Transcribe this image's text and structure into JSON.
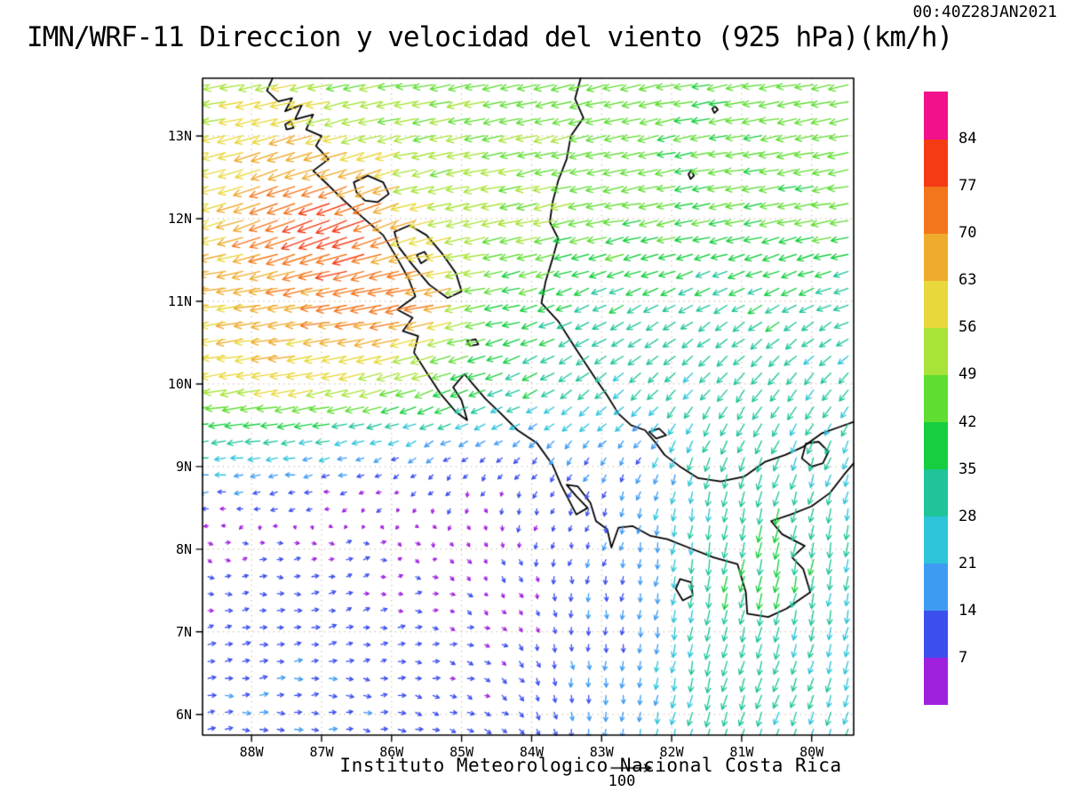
{
  "header": {
    "title": "IMN/WRF-11 Direccion y velocidad del viento (925 hPa)(km/h)",
    "timestamp": "00:40Z28JAN2021"
  },
  "footer": {
    "credit": "Instituto Meteorologico Nacional Costa Rica",
    "reference_value": "100"
  },
  "chart_data": {
    "type": "vector_field",
    "title": "IMN/WRF-11 Direccion y velocidad del viento (925 hPa)(km/h)",
    "timestamp": "00:40Z28JAN2021",
    "credit": "Instituto Meteorologico Nacional Costa Rica",
    "variable": "Direccion y velocidad del viento",
    "level": "925 hPa",
    "units": "km/h",
    "reference_vector_kmh": 100,
    "lon_range": [
      -88.7,
      -79.4
    ],
    "lat_range": [
      5.75,
      13.7
    ],
    "x_ticks": [
      {
        "label": "88W",
        "lon": -88
      },
      {
        "label": "87W",
        "lon": -87
      },
      {
        "label": "86W",
        "lon": -86
      },
      {
        "label": "85W",
        "lon": -85
      },
      {
        "label": "84W",
        "lon": -84
      },
      {
        "label": "83W",
        "lon": -83
      },
      {
        "label": "82W",
        "lon": -82
      },
      {
        "label": "81W",
        "lon": -81
      },
      {
        "label": "80W",
        "lon": -80
      }
    ],
    "y_ticks": [
      {
        "label": "6N",
        "lat": 6
      },
      {
        "label": "7N",
        "lat": 7
      },
      {
        "label": "8N",
        "lat": 8
      },
      {
        "label": "9N",
        "lat": 9
      },
      {
        "label": "10N",
        "lat": 10
      },
      {
        "label": "11N",
        "lat": 11
      },
      {
        "label": "12N",
        "lat": 12
      },
      {
        "label": "13N",
        "lat": 13
      }
    ],
    "colorbar": {
      "thresholds": [
        7,
        14,
        21,
        28,
        35,
        42,
        49,
        56,
        63,
        70,
        77,
        84
      ],
      "colors": [
        "#a021dd",
        "#3c4fee",
        "#3f9bf2",
        "#2ec4d9",
        "#1fc49b",
        "#16ce3f",
        "#5fdd33",
        "#a8e33a",
        "#e8d83c",
        "#eeab2e",
        "#f4761c",
        "#f43b13",
        "#f2108c"
      ]
    },
    "wind_grid": {
      "comment_units": "u eastward km/h, v northward km/h, coarse grid read from figure",
      "lons": [
        -88.7,
        -87.5,
        -86.5,
        -85.5,
        -84.5,
        -83.5,
        -82.5,
        -81.5,
        -80.5,
        -79.4
      ],
      "lats": [
        13.7,
        13.0,
        12.0,
        11.0,
        10.0,
        9.0,
        8.5,
        8.0,
        7.0,
        6.0
      ],
      "u": [
        [
          -50,
          -52,
          -48,
          -46,
          -45,
          -45,
          -44,
          -43,
          -44,
          -45
        ],
        [
          -55,
          -62,
          -56,
          -48,
          -46,
          -45,
          -44,
          -42,
          -44,
          -45
        ],
        [
          -56,
          -70,
          -78,
          -55,
          -50,
          -46,
          -44,
          -42,
          -43,
          -44
        ],
        [
          -62,
          -68,
          -73,
          -74,
          -42,
          -33,
          -30,
          -28,
          -30,
          -30
        ],
        [
          -55,
          -58,
          -55,
          -45,
          -35,
          -25,
          -22,
          -20,
          -20,
          -18
        ],
        [
          -22,
          -18,
          -12,
          -8,
          -6,
          -8,
          -6,
          -8,
          -10,
          -8
        ],
        [
          -10,
          -8,
          -4,
          -2,
          0,
          -2,
          -4,
          -5,
          -8,
          -5
        ],
        [
          6,
          8,
          6,
          4,
          2,
          -2,
          -3,
          -5,
          -8,
          -5
        ],
        [
          10,
          12,
          10,
          8,
          6,
          2,
          -2,
          -6,
          -8,
          -6
        ],
        [
          12,
          13,
          12,
          10,
          8,
          2,
          -3,
          -8,
          -10,
          -8
        ]
      ],
      "v": [
        [
          -8,
          -10,
          -10,
          -8,
          -10,
          -12,
          -10,
          -8,
          -8,
          -8
        ],
        [
          -10,
          -18,
          -15,
          -10,
          -10,
          -12,
          -10,
          -8,
          -8,
          -8
        ],
        [
          -12,
          -28,
          -32,
          -15,
          -10,
          -10,
          -8,
          -8,
          -8,
          -8
        ],
        [
          -8,
          -10,
          -12,
          -15,
          -8,
          -12,
          -15,
          -15,
          -15,
          -12
        ],
        [
          -8,
          -10,
          -12,
          -15,
          -12,
          -18,
          -20,
          -22,
          -25,
          -22
        ],
        [
          -2,
          -2,
          -4,
          -6,
          -8,
          -10,
          -12,
          -28,
          -30,
          -25
        ],
        [
          -2,
          -2,
          -2,
          -4,
          -6,
          -8,
          -16,
          -30,
          -34,
          -26
        ],
        [
          -2,
          0,
          2,
          -2,
          -6,
          -10,
          -14,
          -32,
          -38,
          -28
        ],
        [
          2,
          2,
          2,
          0,
          -4,
          -12,
          -16,
          -32,
          -30,
          -26
        ],
        [
          0,
          0,
          -2,
          -2,
          -5,
          -15,
          -18,
          -30,
          -28,
          -25
        ]
      ]
    },
    "coastlines": [
      [
        [
          -87.7,
          13.7
        ],
        [
          -87.78,
          13.55
        ],
        [
          -87.62,
          13.42
        ],
        [
          -87.42,
          13.46
        ],
        [
          -87.52,
          13.3
        ],
        [
          -87.28,
          13.38
        ],
        [
          -87.38,
          13.2
        ],
        [
          -87.12,
          13.26
        ],
        [
          -87.22,
          13.08
        ],
        [
          -87.0,
          13.0
        ],
        [
          -87.08,
          12.88
        ],
        [
          -86.9,
          12.72
        ],
        [
          -87.12,
          12.58
        ],
        [
          -86.92,
          12.42
        ],
        [
          -86.68,
          12.22
        ],
        [
          -86.42,
          12.02
        ],
        [
          -86.12,
          11.8
        ],
        [
          -85.92,
          11.52
        ],
        [
          -85.76,
          11.28
        ],
        [
          -85.66,
          11.06
        ],
        [
          -85.92,
          10.9
        ],
        [
          -85.7,
          10.8
        ],
        [
          -85.84,
          10.64
        ],
        [
          -85.62,
          10.58
        ],
        [
          -85.68,
          10.38
        ],
        [
          -85.5,
          10.14
        ],
        [
          -85.3,
          9.88
        ],
        [
          -85.08,
          9.66
        ],
        [
          -84.92,
          9.56
        ],
        [
          -85.0,
          9.8
        ],
        [
          -85.12,
          9.96
        ],
        [
          -84.96,
          10.12
        ],
        [
          -84.8,
          9.96
        ],
        [
          -84.66,
          9.82
        ],
        [
          -84.46,
          9.66
        ],
        [
          -84.2,
          9.44
        ],
        [
          -83.92,
          9.28
        ],
        [
          -83.7,
          9.02
        ],
        [
          -83.58,
          8.78
        ],
        [
          -83.36,
          8.42
        ],
        [
          -83.2,
          8.5
        ],
        [
          -83.36,
          8.64
        ],
        [
          -83.5,
          8.78
        ],
        [
          -83.34,
          8.76
        ],
        [
          -83.16,
          8.56
        ],
        [
          -83.08,
          8.34
        ],
        [
          -82.92,
          8.24
        ],
        [
          -82.86,
          8.02
        ],
        [
          -82.76,
          8.26
        ],
        [
          -82.56,
          8.28
        ],
        [
          -82.3,
          8.16
        ],
        [
          -82.06,
          8.12
        ],
        [
          -81.76,
          8.02
        ],
        [
          -81.4,
          7.9
        ],
        [
          -81.06,
          7.82
        ],
        [
          -80.94,
          7.48
        ],
        [
          -80.92,
          7.22
        ],
        [
          -80.62,
          7.18
        ],
        [
          -80.36,
          7.28
        ],
        [
          -80.02,
          7.48
        ],
        [
          -80.12,
          7.76
        ],
        [
          -80.28,
          7.9
        ],
        [
          -80.1,
          8.04
        ],
        [
          -80.42,
          8.18
        ],
        [
          -80.58,
          8.34
        ],
        [
          -80.3,
          8.42
        ],
        [
          -80.0,
          8.52
        ],
        [
          -79.74,
          8.68
        ],
        [
          -79.54,
          8.9
        ],
        [
          -79.4,
          9.04
        ]
      ],
      [
        [
          -83.3,
          13.7
        ],
        [
          -83.38,
          13.45
        ],
        [
          -83.26,
          13.22
        ],
        [
          -83.44,
          13.0
        ],
        [
          -83.5,
          12.72
        ],
        [
          -83.62,
          12.46
        ],
        [
          -83.7,
          12.2
        ],
        [
          -83.74,
          11.96
        ],
        [
          -83.62,
          11.76
        ],
        [
          -83.7,
          11.52
        ],
        [
          -83.8,
          11.24
        ],
        [
          -83.86,
          10.98
        ],
        [
          -83.62,
          10.76
        ],
        [
          -83.38,
          10.44
        ],
        [
          -83.1,
          10.08
        ],
        [
          -82.92,
          9.86
        ],
        [
          -82.76,
          9.64
        ],
        [
          -82.58,
          9.5
        ],
        [
          -82.38,
          9.44
        ],
        [
          -82.22,
          9.28
        ],
        [
          -82.1,
          9.14
        ],
        [
          -81.88,
          9.0
        ],
        [
          -81.62,
          8.86
        ],
        [
          -81.3,
          8.82
        ],
        [
          -80.96,
          8.88
        ],
        [
          -80.66,
          9.06
        ],
        [
          -80.38,
          9.14
        ],
        [
          -80.12,
          9.24
        ],
        [
          -79.86,
          9.4
        ],
        [
          -79.6,
          9.48
        ],
        [
          -79.4,
          9.54
        ]
      ],
      [
        [
          -86.54,
          12.44
        ],
        [
          -86.34,
          12.52
        ],
        [
          -86.12,
          12.44
        ],
        [
          -86.04,
          12.3
        ],
        [
          -86.2,
          12.2
        ],
        [
          -86.38,
          12.22
        ],
        [
          -86.5,
          12.32
        ],
        [
          -86.54,
          12.44
        ]
      ],
      [
        [
          -85.96,
          11.84
        ],
        [
          -85.74,
          11.92
        ],
        [
          -85.5,
          11.8
        ],
        [
          -85.28,
          11.58
        ],
        [
          -85.08,
          11.34
        ],
        [
          -85.0,
          11.12
        ],
        [
          -85.2,
          11.04
        ],
        [
          -85.46,
          11.2
        ],
        [
          -85.7,
          11.44
        ],
        [
          -85.9,
          11.66
        ],
        [
          -85.96,
          11.84
        ]
      ],
      [
        [
          -85.64,
          11.56
        ],
        [
          -85.53,
          11.6
        ],
        [
          -85.47,
          11.52
        ],
        [
          -85.58,
          11.46
        ],
        [
          -85.64,
          11.56
        ]
      ],
      [
        [
          -87.52,
          13.14
        ],
        [
          -87.44,
          13.18
        ],
        [
          -87.4,
          13.1
        ],
        [
          -87.5,
          13.08
        ],
        [
          -87.52,
          13.14
        ]
      ],
      [
        [
          -81.88,
          7.64
        ],
        [
          -81.72,
          7.6
        ],
        [
          -81.7,
          7.44
        ],
        [
          -81.84,
          7.38
        ],
        [
          -81.94,
          7.52
        ],
        [
          -81.88,
          7.64
        ]
      ],
      [
        [
          -81.72,
          12.58
        ],
        [
          -81.68,
          12.52
        ],
        [
          -81.73,
          12.48
        ],
        [
          -81.76,
          12.54
        ],
        [
          -81.72,
          12.58
        ]
      ],
      [
        [
          -81.38,
          13.36
        ],
        [
          -81.34,
          13.32
        ],
        [
          -81.39,
          13.28
        ],
        [
          -81.42,
          13.33
        ],
        [
          -81.38,
          13.36
        ]
      ],
      [
        [
          -80.08,
          9.28
        ],
        [
          -79.9,
          9.3
        ],
        [
          -79.76,
          9.18
        ],
        [
          -79.84,
          9.04
        ],
        [
          -80.0,
          9.0
        ],
        [
          -80.14,
          9.1
        ],
        [
          -80.08,
          9.28
        ]
      ],
      [
        [
          -82.32,
          9.42
        ],
        [
          -82.18,
          9.46
        ],
        [
          -82.08,
          9.38
        ],
        [
          -82.22,
          9.34
        ],
        [
          -82.32,
          9.42
        ]
      ],
      [
        [
          -84.92,
          10.52
        ],
        [
          -84.8,
          10.54
        ],
        [
          -84.76,
          10.48
        ],
        [
          -84.88,
          10.46
        ],
        [
          -84.92,
          10.52
        ]
      ]
    ]
  }
}
